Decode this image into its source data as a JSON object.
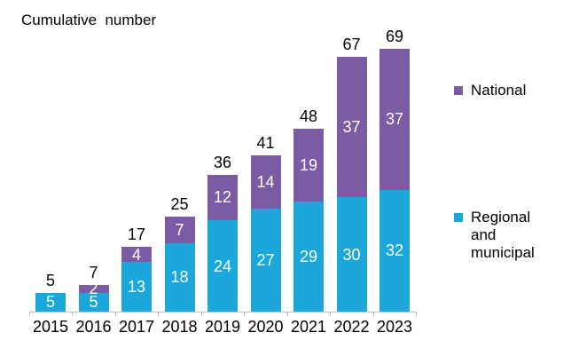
{
  "title": "Cumulative  number",
  "chart_data": {
    "type": "bar",
    "stacked": true,
    "title": "Cumulative number",
    "categories": [
      "2015",
      "2016",
      "2017",
      "2018",
      "2019",
      "2020",
      "2021",
      "2022",
      "2023"
    ],
    "series": [
      {
        "name": "Regional and municipal",
        "color": "#1BA7DC",
        "values": [
          5,
          5,
          13,
          18,
          24,
          27,
          29,
          30,
          32
        ]
      },
      {
        "name": "National",
        "color": "#7C5BA5",
        "values": [
          0,
          2,
          4,
          7,
          12,
          14,
          19,
          37,
          37
        ]
      }
    ],
    "totals": [
      5,
      7,
      17,
      25,
      36,
      41,
      48,
      67,
      69
    ],
    "xlabel": "",
    "ylabel": "Cumulative number",
    "ylim": [
      0,
      69
    ],
    "grid": false,
    "legend_position": "right",
    "bar_label_color": "#FFFFFF",
    "total_label_color": "#000000"
  },
  "legend": {
    "national": "National",
    "regional": "Regional and municipal"
  },
  "colors": {
    "national": "#7C5BA5",
    "regional": "#1BA7DC",
    "axis": "#C0C0C0",
    "text": "#000000",
    "background": "#FFFFFF"
  }
}
